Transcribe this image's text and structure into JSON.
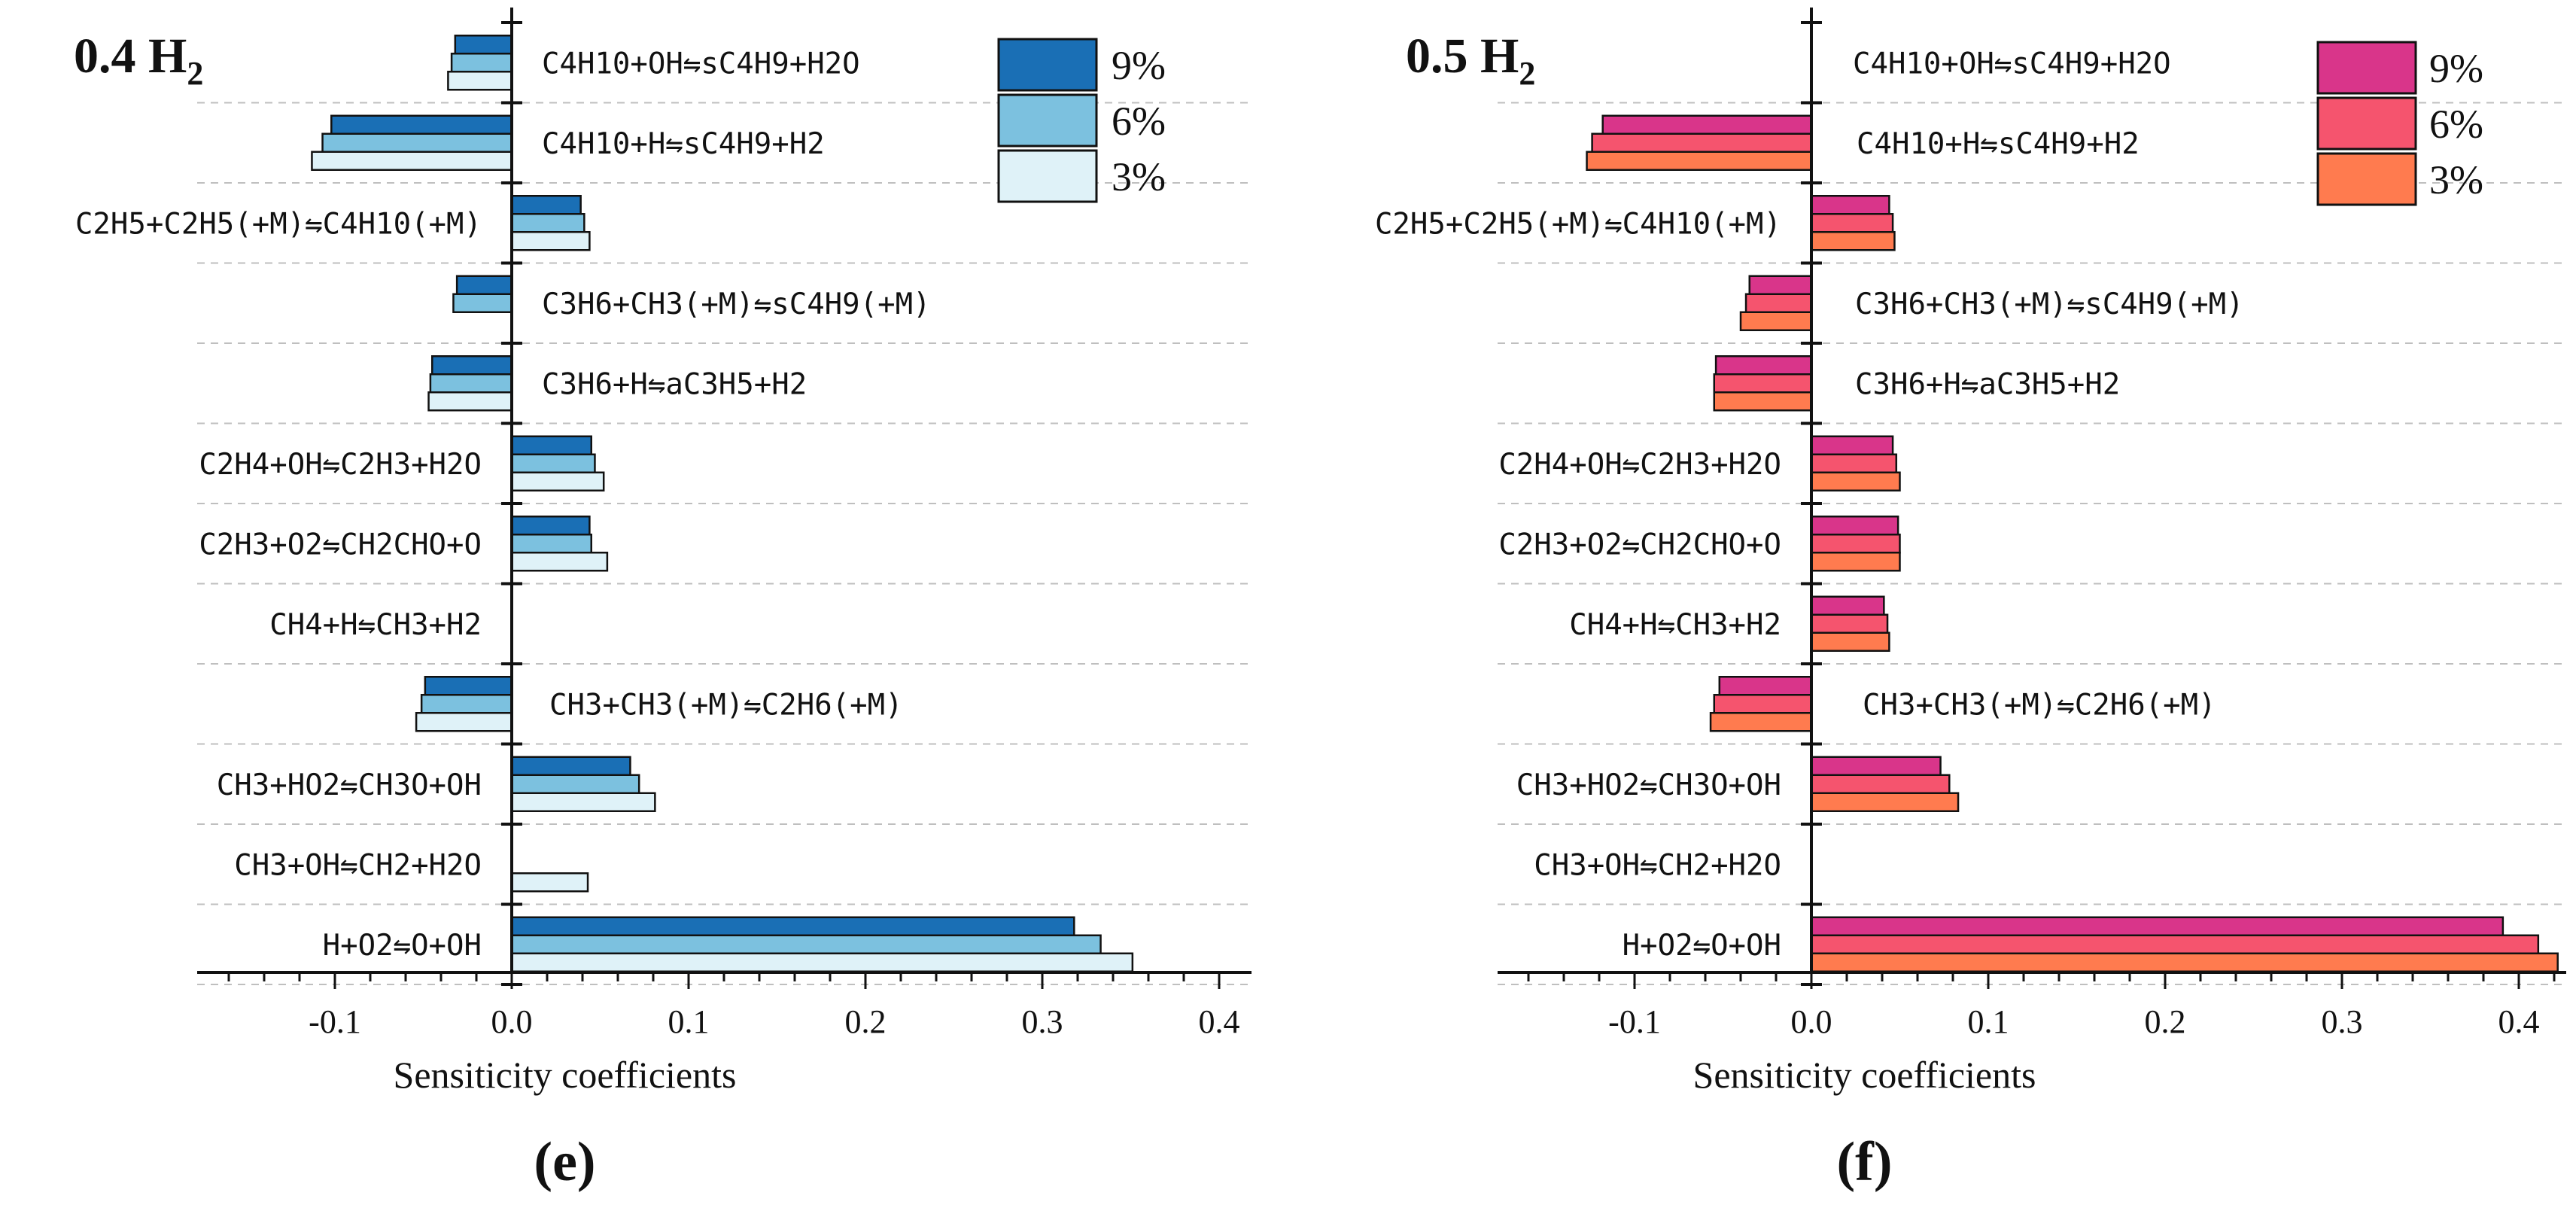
{
  "chart_data": [
    {
      "type": "bar",
      "orientation": "horizontal",
      "panel_label": "0.4 H",
      "panel_sub": "2",
      "caption": "(e)",
      "xlabel": "Sensiticity coefficients",
      "xlim": [
        -0.18,
        0.42
      ],
      "xticks": [
        -0.1,
        0.0,
        0.1,
        0.2,
        0.3,
        0.4
      ],
      "xtick_labels": [
        "-0.1",
        "0.0",
        "0.1",
        "0.2",
        "0.3",
        "0.4"
      ],
      "grid": "dashed horizontal",
      "legend_position": "top-right",
      "categories": [
        "C4H10+OH⇋sC4H9+H2O",
        "C4H10+H⇋sC4H9+H2",
        "C2H5+C2H5(+M)⇋C4H10(+M)",
        "C3H6+CH3(+M)⇋sC4H9(+M)",
        "C3H6+H⇋aC3H5+H2",
        "C2H4+OH⇋C2H3+H2O",
        "C2H3+O2⇋CH2CHO+O",
        "CH4+H⇋CH3+H2",
        "CH3+CH3(+M)⇋C2H6(+M)",
        "CH3+HO2⇋CH3O+OH",
        "CH3+OH⇋CH2+H2O",
        "H+O2⇋O+OH"
      ],
      "series": [
        {
          "name": "9%",
          "color": "#1a6fb5",
          "values": [
            -0.032,
            -0.102,
            0.039,
            -0.031,
            -0.045,
            0.045,
            0.044,
            0,
            -0.049,
            0.067,
            0,
            0.318
          ]
        },
        {
          "name": "6%",
          "color": "#7cc1df",
          "values": [
            -0.034,
            -0.107,
            0.041,
            -0.033,
            -0.046,
            0.047,
            0.045,
            0,
            -0.051,
            0.072,
            0,
            0.333
          ]
        },
        {
          "name": "3%",
          "color": "#dff2f8",
          "values": [
            -0.036,
            -0.113,
            0.044,
            0,
            -0.047,
            0.052,
            0.054,
            0,
            -0.054,
            0.081,
            0.043,
            0.351
          ]
        }
      ]
    },
    {
      "type": "bar",
      "orientation": "horizontal",
      "panel_label": "0.5 H",
      "panel_sub": "2",
      "caption": "(f)",
      "xlabel": "Sensiticity coefficients",
      "xlim": [
        -0.18,
        0.43
      ],
      "xticks": [
        -0.1,
        0.0,
        0.1,
        0.2,
        0.3,
        0.4
      ],
      "xtick_labels": [
        "-0.1",
        "0.0",
        "0.1",
        "0.2",
        "0.3",
        "0.4"
      ],
      "grid": "dashed horizontal",
      "legend_position": "top-right",
      "categories": [
        "C4H10+OH⇋sC4H9+H2O",
        "C4H10+H⇋sC4H9+H2",
        "C2H5+C2H5(+M)⇋C4H10(+M)",
        "C3H6+CH3(+M)⇋sC4H9(+M)",
        "C3H6+H⇋aC3H5+H2",
        "C2H4+OH⇋C2H3+H2O",
        "C2H3+O2⇋CH2CHO+O",
        "CH4+H⇋CH3+H2",
        "CH3+CH3(+M)⇋C2H6(+M)",
        "CH3+HO2⇋CH3O+OH",
        "CH3+OH⇋CH2+H2O",
        "H+O2⇋O+OH"
      ],
      "series": [
        {
          "name": "9%",
          "color": "#d9358a",
          "values": [
            0,
            -0.118,
            0.044,
            -0.035,
            -0.054,
            0.046,
            0.049,
            0.041,
            -0.052,
            0.073,
            0,
            0.391
          ]
        },
        {
          "name": "6%",
          "color": "#f5546e",
          "values": [
            0,
            -0.124,
            0.046,
            -0.037,
            -0.055,
            0.048,
            0.05,
            0.043,
            -0.055,
            0.078,
            0,
            0.411
          ]
        },
        {
          "name": "3%",
          "color": "#ff7b4f",
          "values": [
            0,
            -0.127,
            0.047,
            -0.04,
            -0.055,
            0.05,
            0.05,
            0.044,
            -0.057,
            0.083,
            0,
            0.422
          ]
        }
      ]
    }
  ]
}
